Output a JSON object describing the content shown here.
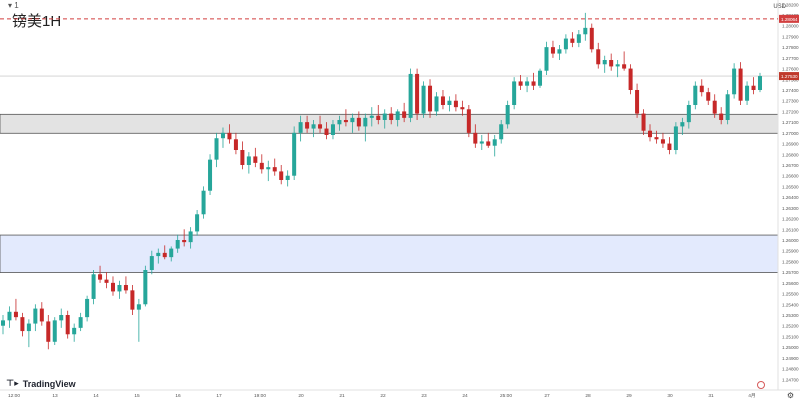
{
  "header": {
    "topbar": "▾ 1",
    "title": "镑美1H",
    "unit": "USD"
  },
  "footer": {
    "logo_text": "TradingView",
    "settings_icon": "gear-icon"
  },
  "colors": {
    "up": "#26a69a",
    "down": "#c62828",
    "resistance_band": "#e3e3e3",
    "support_band": "#e3eafd",
    "dashed_line": "#d23f3f",
    "last_price_tag": "#c0392b"
  },
  "chart_data": {
    "type": "candlestick",
    "symbol": "镑美",
    "timeframe": "1H",
    "ylim": [
      1.246,
      1.2824
    ],
    "y_ticks": [
      1.282,
      1.281,
      1.28,
      1.279,
      1.278,
      1.277,
      1.276,
      1.275,
      1.274,
      1.273,
      1.272,
      1.271,
      1.27,
      1.269,
      1.268,
      1.267,
      1.266,
      1.265,
      1.264,
      1.263,
      1.262,
      1.261,
      1.26,
      1.259,
      1.258,
      1.257,
      1.256,
      1.255,
      1.254,
      1.253,
      1.252,
      1.251,
      1.25,
      1.249,
      1.248,
      1.247
    ],
    "x_ticks": [
      "12:00",
      "13",
      "14",
      "15",
      "16",
      "17",
      "19:00",
      "20",
      "21",
      "22",
      "23",
      "24",
      "25:00",
      "27",
      "28",
      "29",
      "30",
      "31",
      "4月"
    ],
    "horizontal_lines": [
      {
        "value": 1.28064,
        "style": "dashed",
        "label": "1.28064"
      },
      {
        "value": 1.2753,
        "style": "solid",
        "label": "1.27530"
      }
    ],
    "zones": [
      {
        "name": "resistance",
        "from": 1.26996,
        "to": 1.27173
      },
      {
        "name": "support",
        "from": 1.25696,
        "to": 1.26046
      }
    ],
    "candles": [
      [
        1.252,
        1.253,
        1.2512,
        1.2525
      ],
      [
        1.2525,
        1.2538,
        1.2518,
        1.2533
      ],
      [
        1.2533,
        1.2545,
        1.2525,
        1.2528
      ],
      [
        1.2528,
        1.2532,
        1.251,
        1.2515
      ],
      [
        1.2515,
        1.2526,
        1.25,
        1.2522
      ],
      [
        1.2522,
        1.254,
        1.2515,
        1.2536
      ],
      [
        1.2536,
        1.2542,
        1.252,
        1.2524
      ],
      [
        1.2524,
        1.253,
        1.2498,
        1.2505
      ],
      [
        1.2505,
        1.2528,
        1.2502,
        1.2525
      ],
      [
        1.2525,
        1.2536,
        1.2518,
        1.253
      ],
      [
        1.253,
        1.2534,
        1.2508,
        1.2512
      ],
      [
        1.2512,
        1.2522,
        1.2505,
        1.2518
      ],
      [
        1.2518,
        1.2532,
        1.2515,
        1.2528
      ],
      [
        1.2528,
        1.2548,
        1.2524,
        1.2545
      ],
      [
        1.2545,
        1.2572,
        1.254,
        1.2568
      ],
      [
        1.2568,
        1.2576,
        1.256,
        1.2563
      ],
      [
        1.2563,
        1.257,
        1.2555,
        1.256
      ],
      [
        1.256,
        1.2566,
        1.2548,
        1.2552
      ],
      [
        1.2552,
        1.2562,
        1.2545,
        1.2558
      ],
      [
        1.2558,
        1.2566,
        1.255,
        1.2553
      ],
      [
        1.2553,
        1.2558,
        1.253,
        1.2535
      ],
      [
        1.2535,
        1.2545,
        1.2505,
        1.254
      ],
      [
        1.254,
        1.2576,
        1.2538,
        1.2572
      ],
      [
        1.2572,
        1.259,
        1.2568,
        1.2585
      ],
      [
        1.2585,
        1.2592,
        1.2578,
        1.2588
      ],
      [
        1.2588,
        1.2595,
        1.2582,
        1.2584
      ],
      [
        1.2584,
        1.2594,
        1.258,
        1.2592
      ],
      [
        1.2592,
        1.2605,
        1.2588,
        1.26
      ],
      [
        1.26,
        1.261,
        1.2594,
        1.2598
      ],
      [
        1.2598,
        1.2612,
        1.2592,
        1.2608
      ],
      [
        1.2608,
        1.2628,
        1.2604,
        1.2624
      ],
      [
        1.2624,
        1.265,
        1.262,
        1.2646
      ],
      [
        1.2646,
        1.268,
        1.2642,
        1.2675
      ],
      [
        1.2675,
        1.27,
        1.2668,
        1.2695
      ],
      [
        1.2695,
        1.2705,
        1.2686,
        1.27
      ],
      [
        1.27,
        1.2708,
        1.269,
        1.2694
      ],
      [
        1.2694,
        1.27,
        1.268,
        1.2684
      ],
      [
        1.2684,
        1.2692,
        1.2666,
        1.267
      ],
      [
        1.267,
        1.2682,
        1.2662,
        1.2678
      ],
      [
        1.2678,
        1.2686,
        1.2668,
        1.2672
      ],
      [
        1.2672,
        1.268,
        1.2662,
        1.2666
      ],
      [
        1.2666,
        1.2674,
        1.2655,
        1.2668
      ],
      [
        1.2668,
        1.2676,
        1.266,
        1.2664
      ],
      [
        1.2664,
        1.267,
        1.2652,
        1.2656
      ],
      [
        1.2656,
        1.2665,
        1.265,
        1.266
      ],
      [
        1.266,
        1.2706,
        1.2656,
        1.27
      ],
      [
        1.27,
        1.2716,
        1.2692,
        1.271
      ],
      [
        1.271,
        1.2716,
        1.27,
        1.2704
      ],
      [
        1.2704,
        1.2712,
        1.2696,
        1.2708
      ],
      [
        1.2708,
        1.2716,
        1.27,
        1.2704
      ],
      [
        1.2704,
        1.271,
        1.2694,
        1.2698
      ],
      [
        1.2698,
        1.2712,
        1.2694,
        1.2708
      ],
      [
        1.2708,
        1.2716,
        1.2702,
        1.2712
      ],
      [
        1.2712,
        1.2722,
        1.2706,
        1.271
      ],
      [
        1.271,
        1.2718,
        1.27,
        1.2714
      ],
      [
        1.2714,
        1.272,
        1.2702,
        1.2706
      ],
      [
        1.2706,
        1.2718,
        1.2692,
        1.2714
      ],
      [
        1.2714,
        1.2724,
        1.2706,
        1.2716
      ],
      [
        1.2716,
        1.2726,
        1.2708,
        1.2712
      ],
      [
        1.2712,
        1.2722,
        1.2704,
        1.2718
      ],
      [
        1.2718,
        1.2724,
        1.2708,
        1.2712
      ],
      [
        1.2712,
        1.2722,
        1.2706,
        1.272
      ],
      [
        1.272,
        1.2728,
        1.271,
        1.2714
      ],
      [
        1.2714,
        1.276,
        1.271,
        1.2755
      ],
      [
        1.2755,
        1.276,
        1.2712,
        1.2718
      ],
      [
        1.2718,
        1.2748,
        1.2714,
        1.2744
      ],
      [
        1.2744,
        1.275,
        1.2714,
        1.272
      ],
      [
        1.272,
        1.2738,
        1.2716,
        1.2734
      ],
      [
        1.2734,
        1.274,
        1.2722,
        1.2726
      ],
      [
        1.2726,
        1.2734,
        1.272,
        1.273
      ],
      [
        1.273,
        1.2736,
        1.272,
        1.2724
      ],
      [
        1.2724,
        1.273,
        1.2716,
        1.2722
      ],
      [
        1.2722,
        1.2726,
        1.2696,
        1.27
      ],
      [
        1.27,
        1.2708,
        1.2686,
        1.269
      ],
      [
        1.269,
        1.2698,
        1.2684,
        1.2692
      ],
      [
        1.2692,
        1.27,
        1.2686,
        1.2688
      ],
      [
        1.2688,
        1.2698,
        1.2678,
        1.2694
      ],
      [
        1.2694,
        1.2712,
        1.269,
        1.2708
      ],
      [
        1.2708,
        1.273,
        1.2704,
        1.2726
      ],
      [
        1.2726,
        1.2752,
        1.2722,
        1.2748
      ],
      [
        1.2748,
        1.2754,
        1.274,
        1.2744
      ],
      [
        1.2744,
        1.2752,
        1.2738,
        1.2748
      ],
      [
        1.2748,
        1.2756,
        1.274,
        1.2744
      ],
      [
        1.2744,
        1.276,
        1.2742,
        1.2758
      ],
      [
        1.2758,
        1.2785,
        1.2754,
        1.278
      ],
      [
        1.278,
        1.2786,
        1.277,
        1.2774
      ],
      [
        1.2774,
        1.2782,
        1.2768,
        1.2778
      ],
      [
        1.2778,
        1.2792,
        1.2774,
        1.2788
      ],
      [
        1.2788,
        1.2794,
        1.278,
        1.2784
      ],
      [
        1.2784,
        1.2796,
        1.278,
        1.2792
      ],
      [
        1.2792,
        1.2812,
        1.2786,
        1.2798
      ],
      [
        1.2798,
        1.2802,
        1.2775,
        1.2778
      ],
      [
        1.2778,
        1.2784,
        1.276,
        1.2764
      ],
      [
        1.2764,
        1.2772,
        1.2756,
        1.2768
      ],
      [
        1.2768,
        1.2774,
        1.2758,
        1.2762
      ],
      [
        1.2762,
        1.2768,
        1.2752,
        1.2764
      ],
      [
        1.2764,
        1.2776,
        1.2758,
        1.276
      ],
      [
        1.276,
        1.2764,
        1.2736,
        1.274
      ],
      [
        1.274,
        1.2746,
        1.2714,
        1.2718
      ],
      [
        1.2718,
        1.2722,
        1.2698,
        1.2702
      ],
      [
        1.2702,
        1.2708,
        1.2692,
        1.2696
      ],
      [
        1.2696,
        1.2702,
        1.269,
        1.2694
      ],
      [
        1.2694,
        1.27,
        1.2686,
        1.269
      ],
      [
        1.269,
        1.2696,
        1.268,
        1.2684
      ],
      [
        1.2684,
        1.271,
        1.268,
        1.2706
      ],
      [
        1.2706,
        1.2714,
        1.2698,
        1.271
      ],
      [
        1.271,
        1.273,
        1.2704,
        1.2726
      ],
      [
        1.2726,
        1.2748,
        1.2722,
        1.2744
      ],
      [
        1.2744,
        1.275,
        1.2734,
        1.2738
      ],
      [
        1.2738,
        1.2742,
        1.2726,
        1.273
      ],
      [
        1.273,
        1.2736,
        1.2714,
        1.2718
      ],
      [
        1.2718,
        1.2724,
        1.2708,
        1.2712
      ],
      [
        1.2712,
        1.274,
        1.2708,
        1.2736
      ],
      [
        1.2736,
        1.2765,
        1.2732,
        1.276
      ],
      [
        1.276,
        1.2766,
        1.2726,
        1.273
      ],
      [
        1.273,
        1.2748,
        1.2726,
        1.2744
      ],
      [
        1.2744,
        1.2752,
        1.2736,
        1.274
      ],
      [
        1.274,
        1.2756,
        1.2738,
        1.2753
      ]
    ]
  }
}
